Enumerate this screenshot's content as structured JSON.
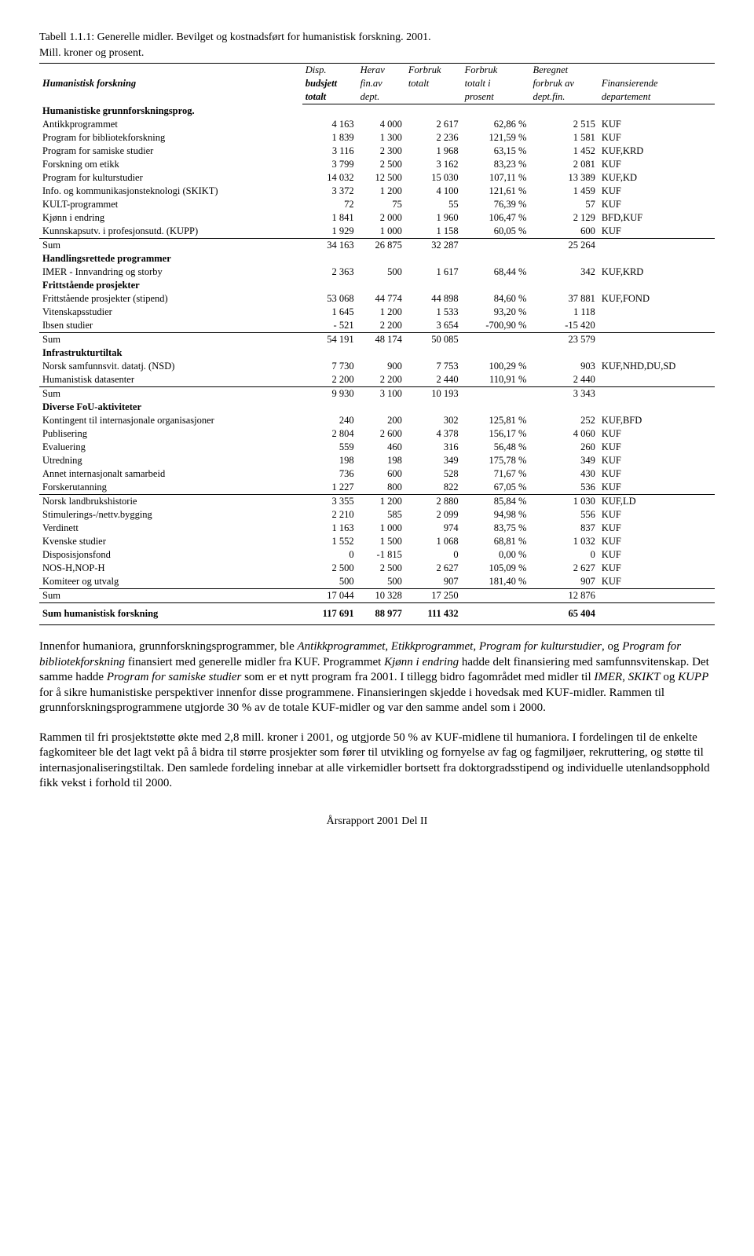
{
  "title_line1": "Tabell 1.1.1: Generelle midler. Bevilget og kostnadsført for humanistisk forskning. 2001.",
  "title_line2": "Mill. kroner og prosent.",
  "columns": {
    "c0": "Humanistisk forskning",
    "c1a": "Disp.",
    "c1b": "budsjett",
    "c1c": "totalt",
    "c2a": "Herav",
    "c2b": "fin.av",
    "c2c": "dept.",
    "c3a": "Forbruk",
    "c3b": "totalt",
    "c3c": "",
    "c4a": "Forbruk",
    "c4b": "totalt i",
    "c4c": "prosent",
    "c5a": "Beregnet",
    "c5b": "forbruk av",
    "c5c": "dept.fin.",
    "c6a": "",
    "c6b": "Finansierende",
    "c6c": "departement"
  },
  "sections": [
    {
      "header": "Humanistiske grunnforskningsprog.",
      "rows": [
        {
          "label": "Antikkprogrammet",
          "c1": "4 163",
          "c2": "4 000",
          "c3": "2 617",
          "c4": "62,86 %",
          "c5": "2 515",
          "c6": "KUF"
        },
        {
          "label": "Program for bibliotekforskning",
          "c1": "1 839",
          "c2": "1 300",
          "c3": "2 236",
          "c4": "121,59 %",
          "c5": "1 581",
          "c6": "KUF"
        },
        {
          "label": "Program for samiske studier",
          "c1": "3 116",
          "c2": "2 300",
          "c3": "1 968",
          "c4": "63,15 %",
          "c5": "1 452",
          "c6": "KUF,KRD"
        },
        {
          "label": "Forskning om etikk",
          "c1": "3 799",
          "c2": "2 500",
          "c3": "3 162",
          "c4": "83,23 %",
          "c5": "2 081",
          "c6": "KUF"
        },
        {
          "label": "Program for kulturstudier",
          "c1": "14 032",
          "c2": "12 500",
          "c3": "15 030",
          "c4": "107,11 %",
          "c5": "13 389",
          "c6": "KUF,KD"
        },
        {
          "label": "Info. og kommunikasjonsteknologi (SKIKT)",
          "c1": "3 372",
          "c2": "1 200",
          "c3": "4 100",
          "c4": "121,61 %",
          "c5": "1 459",
          "c6": "KUF"
        },
        {
          "label": "KULT-programmet",
          "c1": "72",
          "c2": "75",
          "c3": "55",
          "c4": "76,39 %",
          "c5": "57",
          "c6": "KUF"
        },
        {
          "label": "Kjønn i endring",
          "c1": "1 841",
          "c2": "2 000",
          "c3": "1 960",
          "c4": "106,47 %",
          "c5": "2 129",
          "c6": "BFD,KUF"
        },
        {
          "label": "Kunnskapsutv. i profesjonsutd. (KUPP)",
          "c1": "1 929",
          "c2": "1 000",
          "c3": "1 158",
          "c4": "60,05 %",
          "c5": "600",
          "c6": "KUF"
        }
      ],
      "sum": {
        "label": "Sum",
        "c1": "34 163",
        "c2": "26 875",
        "c3": "32 287",
        "c4": "",
        "c5": "25 264",
        "c6": ""
      }
    },
    {
      "header": "Handlingsrettede programmer",
      "rows": [
        {
          "label": "IMER - Innvandring og storby",
          "c1": "2 363",
          "c2": "500",
          "c3": "1 617",
          "c4": "68,44 %",
          "c5": "342",
          "c6": "KUF,KRD"
        }
      ]
    },
    {
      "header": "Frittstående prosjekter",
      "rows": [
        {
          "label": "Frittstående prosjekter (stipend)",
          "c1": "53 068",
          "c2": "44 774",
          "c3": "44 898",
          "c4": "84,60 %",
          "c5": "37 881",
          "c6": "KUF,FOND"
        },
        {
          "label": "Vitenskapsstudier",
          "c1": "1 645",
          "c2": "1 200",
          "c3": "1 533",
          "c4": "93,20 %",
          "c5": "1 118",
          "c6": ""
        },
        {
          "label": "Ibsen studier",
          "c1": "- 521",
          "c2": "2 200",
          "c3": "3 654",
          "c4": "-700,90 %",
          "c5": "-15 420",
          "c6": ""
        }
      ],
      "sum": {
        "label": "Sum",
        "c1": "54 191",
        "c2": "48 174",
        "c3": "50 085",
        "c4": "",
        "c5": "23 579",
        "c6": ""
      }
    },
    {
      "header": "Infrastrukturtiltak",
      "rows": [
        {
          "label": "Norsk samfunnsvit. datatj. (NSD)",
          "c1": "7 730",
          "c2": "900",
          "c3": "7 753",
          "c4": "100,29 %",
          "c5": "903",
          "c6": "KUF,NHD,DU,SD"
        },
        {
          "label": "Humanistisk datasenter",
          "c1": "2 200",
          "c2": "2 200",
          "c3": "2 440",
          "c4": "110,91 %",
          "c5": "2 440",
          "c6": ""
        }
      ],
      "sum": {
        "label": "Sum",
        "c1": "9 930",
        "c2": "3 100",
        "c3": "10 193",
        "c4": "",
        "c5": "3 343",
        "c6": ""
      }
    },
    {
      "header": "Diverse FoU-aktiviteter",
      "rows": [
        {
          "label": "Kontingent til internasjonale organisasjoner",
          "c1": "240",
          "c2": "200",
          "c3": "302",
          "c4": "125,81 %",
          "c5": "252",
          "c6": "KUF,BFD"
        },
        {
          "label": "Publisering",
          "c1": "2 804",
          "c2": "2 600",
          "c3": "4 378",
          "c4": "156,17 %",
          "c5": "4 060",
          "c6": "KUF"
        },
        {
          "label": "Evaluering",
          "c1": "559",
          "c2": "460",
          "c3": "316",
          "c4": "56,48 %",
          "c5": "260",
          "c6": "KUF"
        },
        {
          "label": "Utredning",
          "c1": "198",
          "c2": "198",
          "c3": "349",
          "c4": "175,78 %",
          "c5": "349",
          "c6": "KUF"
        },
        {
          "label": "Annet internasjonalt samarbeid",
          "c1": "736",
          "c2": "600",
          "c3": "528",
          "c4": "71,67 %",
          "c5": "430",
          "c6": "KUF"
        },
        {
          "label": "Forskerutanning",
          "c1": "1 227",
          "c2": "800",
          "c3": "822",
          "c4": "67,05 %",
          "c5": "536",
          "c6": "KUF"
        },
        {
          "label": "Norsk landbrukshistorie",
          "c1": "3 355",
          "c2": "1 200",
          "c3": "2 880",
          "c4": "85,84 %",
          "c5": "1 030",
          "c6": "KUF,LD",
          "top_border": true
        },
        {
          "label": "Stimulerings-/nettv.bygging",
          "c1": "2 210",
          "c2": "585",
          "c3": "2 099",
          "c4": "94,98 %",
          "c5": "556",
          "c6": "KUF"
        },
        {
          "label": "Verdinett",
          "c1": "1 163",
          "c2": "1 000",
          "c3": "974",
          "c4": "83,75 %",
          "c5": "837",
          "c6": "KUF"
        },
        {
          "label": "Kvenske studier",
          "c1": "1 552",
          "c2": "1 500",
          "c3": "1 068",
          "c4": "68,81 %",
          "c5": "1 032",
          "c6": "KUF"
        },
        {
          "label": "Disposisjonsfond",
          "c1": "0",
          "c2": "-1 815",
          "c3": "0",
          "c4": "0,00 %",
          "c5": "0",
          "c6": "KUF"
        },
        {
          "label": "NOS-H,NOP-H",
          "c1": "2 500",
          "c2": "2 500",
          "c3": "2 627",
          "c4": "105,09 %",
          "c5": "2 627",
          "c6": "KUF"
        },
        {
          "label": "Komiteer og utvalg",
          "c1": "500",
          "c2": "500",
          "c3": "907",
          "c4": "181,40 %",
          "c5": "907",
          "c6": "KUF"
        }
      ],
      "sum": {
        "label": "Sum",
        "c1": "17 044",
        "c2": "10 328",
        "c3": "17 250",
        "c4": "",
        "c5": "12 876",
        "c6": ""
      }
    }
  ],
  "final_sum": {
    "label": "Sum humanistisk forskning",
    "c1": "117 691",
    "c2": "88 977",
    "c3": "111 432",
    "c4": "",
    "c5": "65 404",
    "c6": ""
  },
  "para1_parts": [
    {
      "t": "Innenfor humaniora, grunnforskningsprogrammer, ble "
    },
    {
      "t": "Antikkprogrammet",
      "i": true
    },
    {
      "t": ", "
    },
    {
      "t": "Etikkprogrammet",
      "i": true
    },
    {
      "t": ", "
    },
    {
      "t": "Program for kulturstudier",
      "i": true
    },
    {
      "t": ", og "
    },
    {
      "t": "Program for bibliotekforskning",
      "i": true
    },
    {
      "t": " finansiert med generelle midler fra KUF. Programmet "
    },
    {
      "t": "Kjønn i endring",
      "i": true
    },
    {
      "t": " hadde delt finansiering med samfunnsvitenskap. Det samme hadde "
    },
    {
      "t": "Program for samiske studier",
      "i": true
    },
    {
      "t": " som er et nytt program fra 2001. I tillegg bidro fagområdet med midler til "
    },
    {
      "t": "IMER",
      "i": true
    },
    {
      "t": ", "
    },
    {
      "t": "SKIKT",
      "i": true
    },
    {
      "t": " og "
    },
    {
      "t": "KUPP",
      "i": true
    },
    {
      "t": " for å sikre humanistiske perspektiver innenfor disse programmene. Finansieringen skjedde i hovedsak med KUF-midler. Rammen til grunnforskningsprogrammene utgjorde 30 % av de totale KUF-midler og var den samme andel som i 2000."
    }
  ],
  "para2": "Rammen til fri prosjektstøtte økte med 2,8 mill. kroner i 2001, og utgjorde 50 % av KUF-midlene til humaniora. I fordelingen til de enkelte fagkomiteer ble det lagt vekt på å bidra til større prosjekter som fører til utvikling og fornyelse av fag og fagmiljøer, rekruttering, og støtte til internasjonaliseringstiltak. Den samlede fordeling innebar at alle virkemidler bortsett fra doktorgradsstipend og individuelle utenlandsopphold fikk vekst i forhold til 2000.",
  "footer": "Årsrapport 2001 Del II"
}
